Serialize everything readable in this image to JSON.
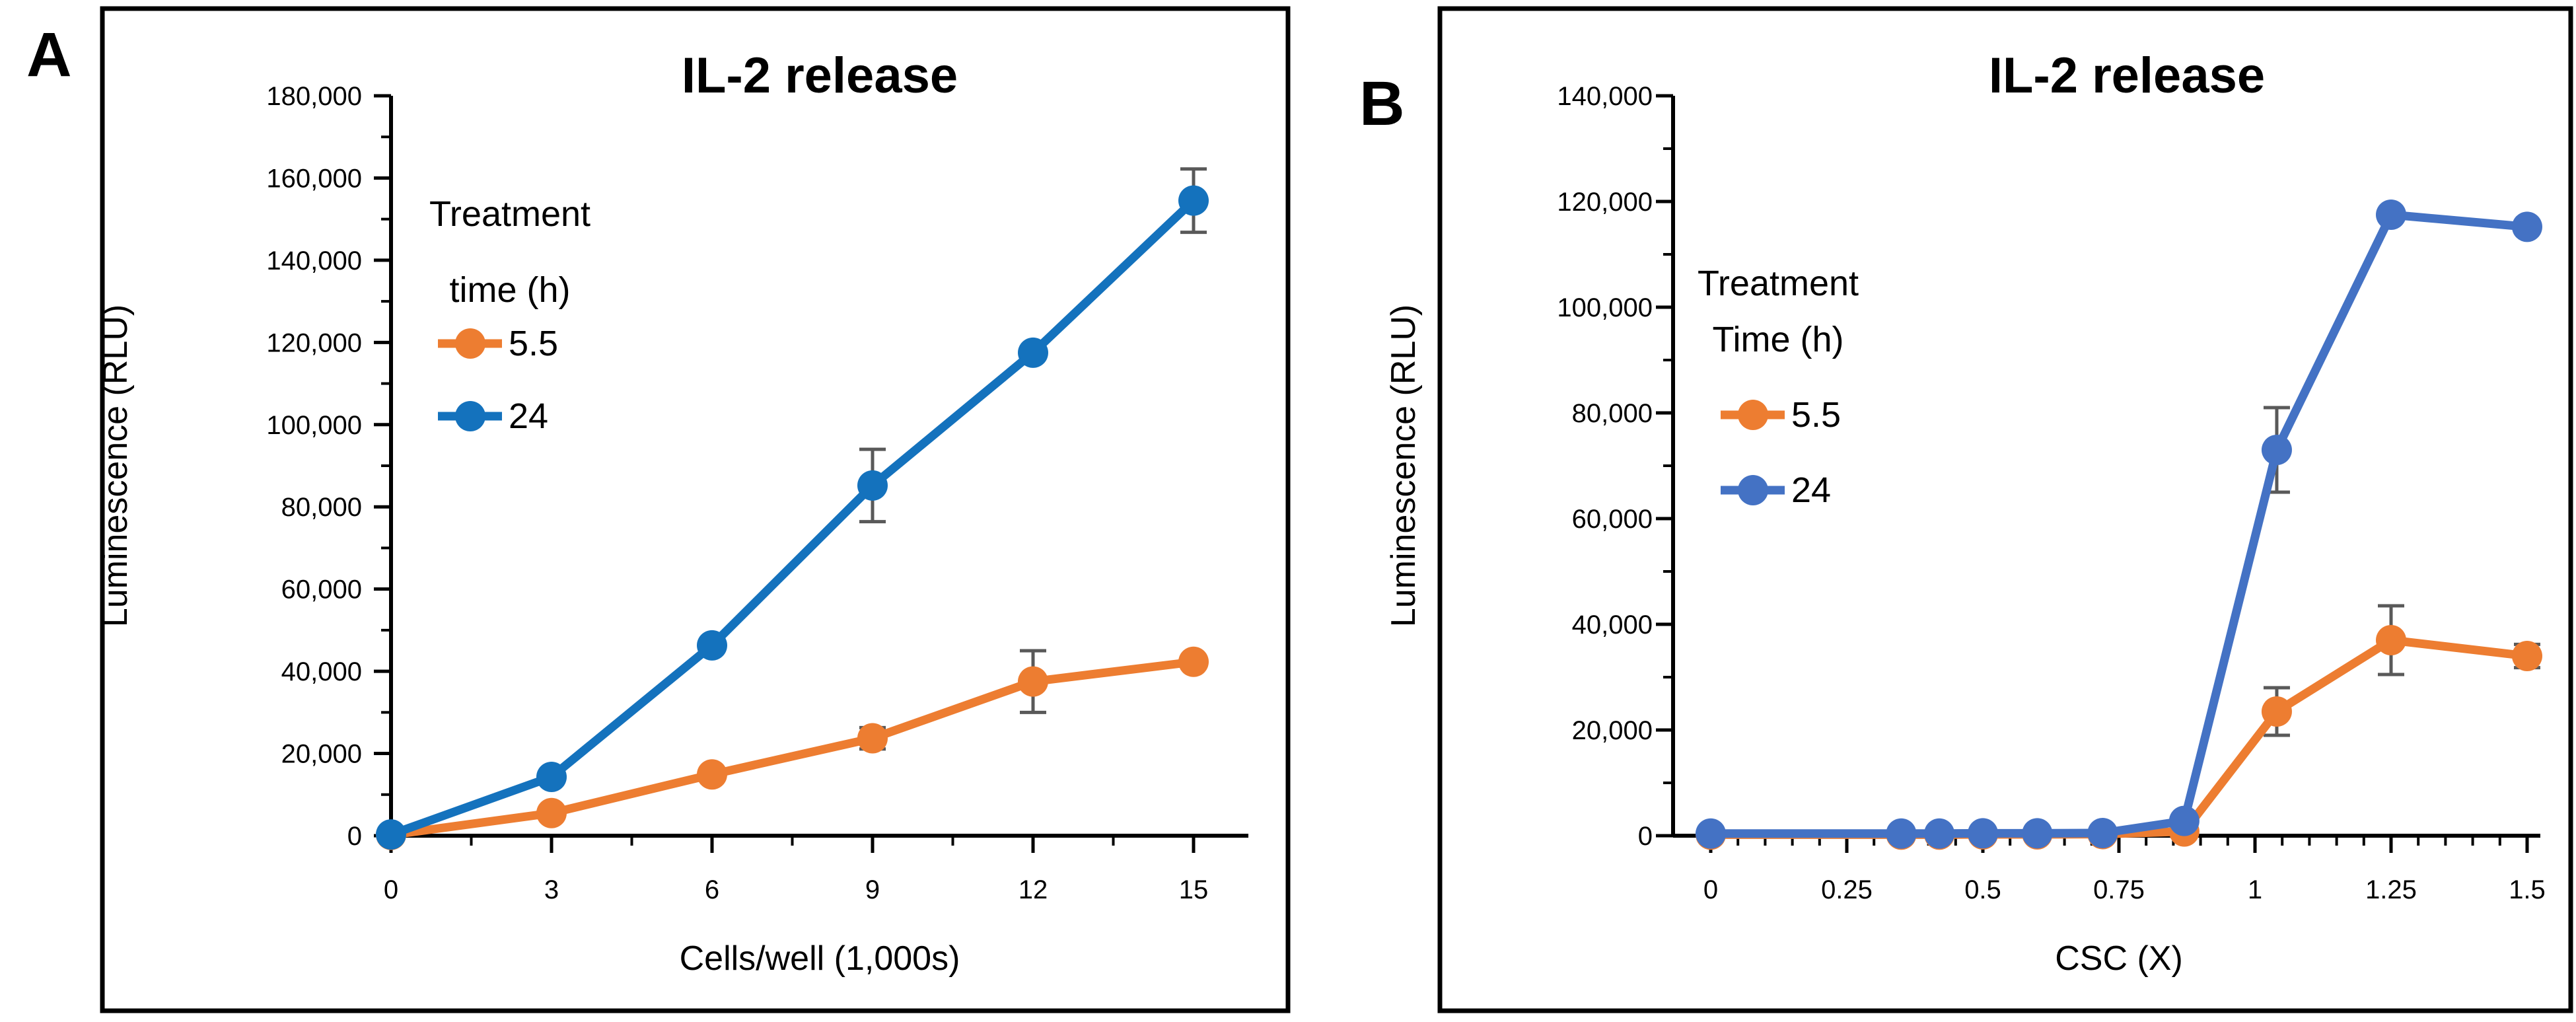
{
  "figure_title": "IL-2 release dual panel figure",
  "error_bar_color": "#595959",
  "frame_color": "#000000",
  "background_color": "#ffffff",
  "chart_data": [
    {
      "panel": "A",
      "type": "line",
      "title": "IL-2 release",
      "xlabel": "Cells/well (1,000s)",
      "ylabel": "Luminescence (RLU)",
      "xlim": [
        0,
        16
      ],
      "ylim": [
        0,
        180000
      ],
      "grid": false,
      "legend_position": "upper-left-inside",
      "legend_title_lines": [
        "Treatment",
        "time (h)"
      ],
      "x_major_ticks": [
        0,
        3,
        6,
        9,
        12,
        15
      ],
      "x_tick_labels": [
        "0",
        "3",
        "6",
        "9",
        "12",
        "15"
      ],
      "x_minor_step": 1.5,
      "y_major_step": 20000,
      "y_minor_step": 10000,
      "y_tick_labels": [
        "0",
        "20,000",
        "40,000",
        "60,000",
        "80,000",
        "100,000",
        "120,000",
        "140,000",
        "160,000",
        "180,000"
      ],
      "series": [
        {
          "name": "5.5",
          "color": "#ED7D31",
          "x": [
            0,
            3,
            6,
            9,
            12,
            15
          ],
          "y": [
            200,
            5500,
            14900,
            23700,
            37500,
            42300
          ],
          "yerr": [
            0,
            0,
            0,
            2600,
            7500,
            0
          ]
        },
        {
          "name": "24",
          "color": "#1472BD",
          "x": [
            0,
            3,
            6,
            9,
            12,
            15
          ],
          "y": [
            300,
            14300,
            46300,
            85200,
            117500,
            154500
          ],
          "yerr": [
            0,
            0,
            0,
            8800,
            0,
            7700
          ]
        }
      ]
    },
    {
      "panel": "B",
      "type": "line",
      "title": "IL-2 release",
      "xlabel": "CSC (X)",
      "ylabel": "Luminescence (RLU)",
      "xlim": [
        0,
        1.52
      ],
      "ylim": [
        0,
        140000
      ],
      "grid": false,
      "legend_position": "upper-left-inside",
      "legend_title_lines": [
        "Treatment",
        "Time (h)"
      ],
      "x_major_ticks": [
        0,
        0.25,
        0.5,
        0.75,
        1,
        1.25,
        1.5
      ],
      "x_tick_labels": [
        "0",
        "0.25",
        "0.5",
        "0.75",
        "1",
        "1.25",
        "1.5"
      ],
      "x_minor_step": 0.05,
      "y_major_step": 20000,
      "y_minor_step": 10000,
      "y_tick_labels": [
        "0",
        "20,000",
        "40,000",
        "60,000",
        "80,000",
        "100,000",
        "120,000",
        "140,000"
      ],
      "series": [
        {
          "name": "5.5",
          "color": "#ED7D31",
          "x": [
            0,
            0.35,
            0.42,
            0.5,
            0.6,
            0.72,
            0.87,
            1.04,
            1.25,
            1.5
          ],
          "y": [
            200,
            200,
            200,
            250,
            250,
            300,
            800,
            23500,
            37000,
            34000
          ],
          "yerr": [
            0,
            0,
            0,
            0,
            0,
            0,
            0,
            4500,
            6500,
            2200
          ]
        },
        {
          "name": "24",
          "color": "#4472C4",
          "x": [
            0,
            0.35,
            0.42,
            0.5,
            0.6,
            0.72,
            0.87,
            1.04,
            1.25,
            1.5
          ],
          "y": [
            400,
            400,
            400,
            450,
            450,
            500,
            2800,
            73000,
            117500,
            115200
          ],
          "yerr": [
            0,
            0,
            0,
            0,
            0,
            0,
            0,
            8000,
            0,
            0
          ]
        }
      ]
    }
  ]
}
